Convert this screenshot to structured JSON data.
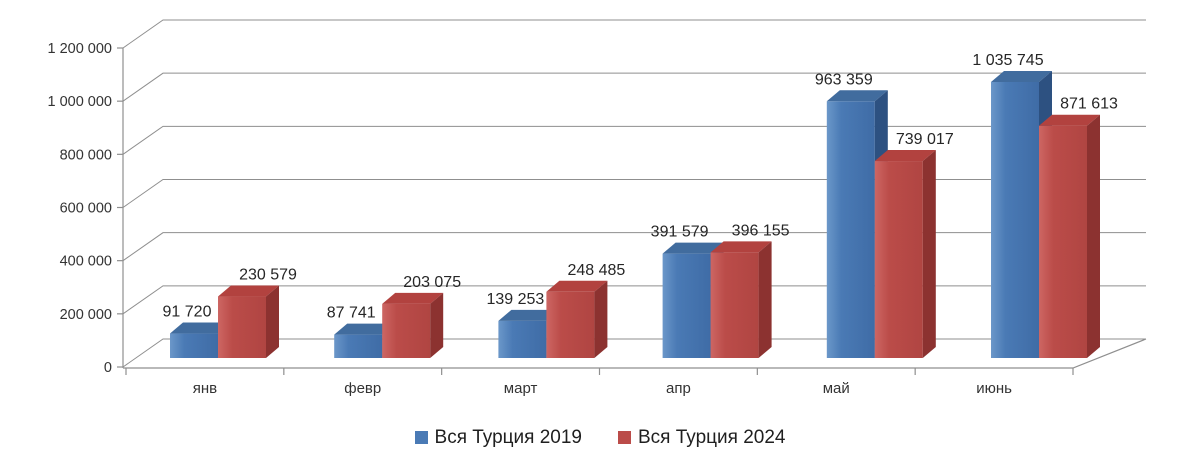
{
  "chart_data": {
    "type": "bar",
    "projection": "3d-clustered-column",
    "title": "",
    "categories": [
      "янв",
      "февр",
      "март",
      "апр",
      "май",
      "июнь"
    ],
    "series": [
      {
        "name": "Вся Турция 2019",
        "color": "#4a7ab5",
        "values": [
          91720,
          87741,
          139253,
          391579,
          963359,
          1035745
        ]
      },
      {
        "name": "Вся Турция 2024",
        "color": "#bb4c49",
        "values": [
          230579,
          203075,
          248485,
          396155,
          739017,
          871613
        ]
      }
    ],
    "data_labels": {
      "visible": true,
      "series_2019": [
        "91 720",
        "87 741",
        "139 253",
        "391 579",
        "963 359",
        "1 035 745"
      ],
      "series_2024": [
        "230 579",
        "203 075",
        "248 485",
        "396 155",
        "739 017",
        "871 613"
      ]
    },
    "ylim": [
      0,
      1200000
    ],
    "ytick_step": 200000,
    "ytick_labels": [
      "0",
      "200 000",
      "400 000",
      "600 000",
      "800 000",
      "1 000 000",
      "1 200 000"
    ],
    "grid": true,
    "legend_position": "bottom",
    "number_format": "space-grouped"
  },
  "colors": {
    "background": "#ffffff",
    "grid": "#8f8f8f",
    "axis": "#8f8f8f",
    "tick_text": "#333333",
    "label_text": "#262626",
    "series_2019_front_light": "#6b97c9",
    "series_2019_front": "#4a7ab5",
    "series_2019_front_dark": "#3f6ca6",
    "series_2019_top": "#416c9e",
    "series_2019_side": "#2d5181",
    "series_2024_front_light": "#cd6663",
    "series_2024_front": "#bb4c49",
    "series_2024_front_dark": "#b04542",
    "series_2024_top": "#b2423f",
    "series_2024_side": "#8c3230"
  }
}
